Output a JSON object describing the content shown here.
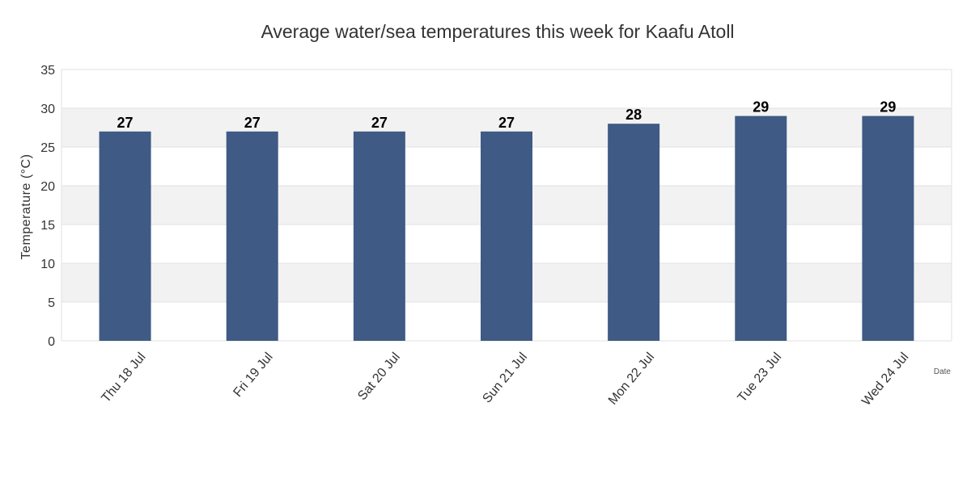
{
  "chart_data": {
    "type": "bar",
    "title": "Average water/sea temperatures this week for Kaafu Atoll",
    "xlabel": "Date",
    "ylabel": "Temperature (°C)",
    "categories": [
      "Thu 18 Jul",
      "Fri 19 Jul",
      "Sat 20 Jul",
      "Sun 21 Jul",
      "Mon 22 Jul",
      "Tue 23 Jul",
      "Wed 24 Jul"
    ],
    "values": [
      27,
      27,
      27,
      27,
      28,
      29,
      29
    ],
    "ylim": [
      0,
      35
    ],
    "yticks": [
      0,
      5,
      10,
      15,
      20,
      25,
      30,
      35
    ],
    "grid": true,
    "bar_color": "#3f5a84",
    "band_color": "#f2f2f2",
    "grid_color": "#e2e2e2"
  }
}
